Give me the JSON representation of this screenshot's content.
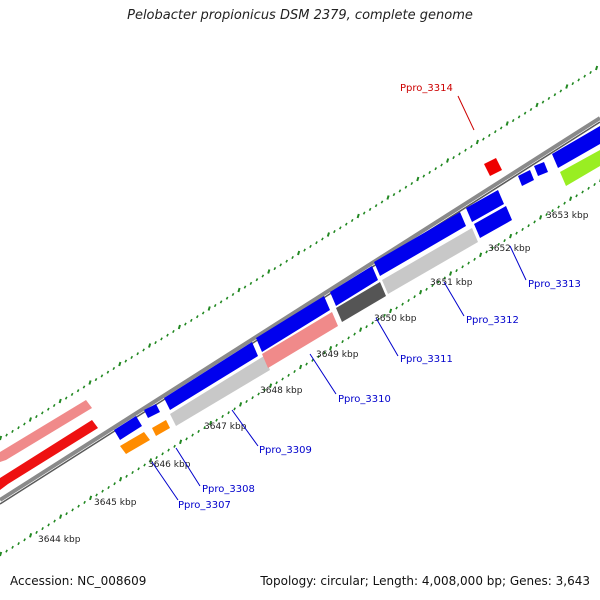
{
  "title": "Pelobacter propionicus DSM 2379, complete genome",
  "footer": {
    "accession": "Accession: NC_008609",
    "topology": "Topology: circular; Length: 4,008,000 bp; Genes: 3,643"
  },
  "colors": {
    "forward_gene": "#0000ee",
    "reverse_gene_light": "#c8c8c8",
    "reverse_gene_dark": "#555555",
    "highlight_gene": "#ee0000",
    "pink_gene": "#f08a8a",
    "orange_gene": "#ff8c00",
    "green_gene": "#99ee22",
    "tick_green": "#228822",
    "label_blue": "#0000cc",
    "label_red": "#cc0000",
    "backbone": "#888888"
  },
  "scale_labels": [
    "3644 kbp",
    "3645 kbp",
    "3646 kbp",
    "3647 kbp",
    "3648 kbp",
    "3649 kbp",
    "3650 kbp",
    "3651 kbp",
    "3652 kbp",
    "3653 kbp"
  ],
  "gene_labels": [
    "Ppro_3307",
    "Ppro_3308",
    "Ppro_3309",
    "Ppro_3310",
    "Ppro_3311",
    "Ppro_3312",
    "Ppro_3313",
    "Ppro_3314"
  ]
}
